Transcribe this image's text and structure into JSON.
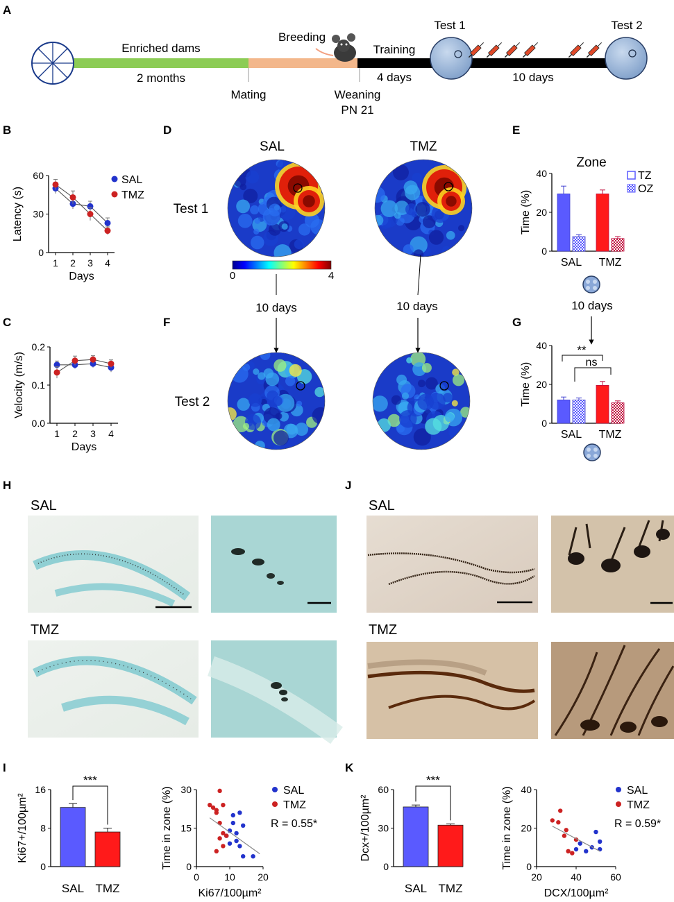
{
  "panels": {
    "A": "A",
    "B": "B",
    "C": "C",
    "D": "D",
    "E": "E",
    "F": "F",
    "G": "G",
    "H": "H",
    "I": "I",
    "J": "J",
    "K": "K"
  },
  "timeline": {
    "enriched": "Enriched dams",
    "months": "2 months",
    "mating": "Mating",
    "breeding": "Breeding",
    "training": "Training",
    "train_days": "4 days",
    "weaning": "Weaning",
    "pn": "PN 21",
    "test1": "Test 1",
    "interval": "10 days",
    "test2": "Test 2",
    "colors": {
      "enriched": "#8ccc55",
      "breeding": "#f3b78b",
      "black": "#000000",
      "pool": "#9ab8dc"
    }
  },
  "groups": {
    "sal": "SAL",
    "tmz": "TMZ"
  },
  "colors": {
    "sal": "#5a5aff",
    "tmz": "#ff1a1a",
    "tmz_dark": "#c01040",
    "sal_dot": "#2233cc",
    "tmz_dot": "#cc2222"
  },
  "heatmap": {
    "rows": [
      "Test 1",
      "Test 2"
    ],
    "arrow_label": "10 days",
    "scale_min": "0",
    "scale_max": "4"
  },
  "histology": {
    "sal": "SAL",
    "tmz": "TMZ"
  },
  "chart_data": [
    {
      "id": "B",
      "type": "line",
      "x": [
        1,
        2,
        3,
        4
      ],
      "xlabel": "Days",
      "ylabel": "Latency (s)",
      "ylim": [
        0,
        60
      ],
      "yticks": [
        "0",
        "30",
        "60"
      ],
      "xticks": [
        "1",
        "2",
        "3",
        "4"
      ],
      "series": [
        {
          "name": "SAL",
          "values": [
            50,
            38,
            36,
            23
          ],
          "err": [
            4,
            4,
            4,
            4
          ]
        },
        {
          "name": "TMZ",
          "values": [
            53,
            43,
            30,
            17
          ],
          "err": [
            4,
            5,
            5,
            3
          ]
        }
      ]
    },
    {
      "id": "C",
      "type": "line",
      "x": [
        1,
        2,
        3,
        4
      ],
      "xlabel": "Days",
      "ylabel": "Velocity (m/s)",
      "ylim": [
        0,
        0.2
      ],
      "yticks": [
        "0.0",
        "0.1",
        "0.2"
      ],
      "xticks": [
        "1",
        "2",
        "3",
        "4"
      ],
      "series": [
        {
          "name": "SAL",
          "values": [
            0.153,
            0.153,
            0.156,
            0.146
          ],
          "err": [
            0.01,
            0.01,
            0.01,
            0.012
          ]
        },
        {
          "name": "TMZ",
          "values": [
            0.133,
            0.164,
            0.167,
            0.156
          ],
          "err": [
            0.015,
            0.012,
            0.01,
            0.01
          ]
        }
      ]
    },
    {
      "id": "E",
      "type": "bar",
      "title": "Zone",
      "categories": [
        "SAL",
        "TMZ"
      ],
      "ylabel": "Time (%)",
      "ylim": [
        0,
        40
      ],
      "yticks": [
        "0",
        "20",
        "40"
      ],
      "legend": [
        "TZ",
        "OZ"
      ],
      "series": [
        {
          "name": "TZ",
          "values": [
            29.5,
            29.5
          ],
          "err": [
            4,
            2
          ]
        },
        {
          "name": "OZ",
          "values": [
            7.5,
            6.5
          ],
          "err": [
            1,
            1
          ]
        }
      ],
      "arrow_label": "10 days"
    },
    {
      "id": "G",
      "type": "bar",
      "categories": [
        "SAL",
        "TMZ"
      ],
      "ylabel": "Time (%)",
      "ylim": [
        0,
        40
      ],
      "yticks": [
        "0",
        "20",
        "40"
      ],
      "series": [
        {
          "name": "TZ",
          "values": [
            12,
            19.5
          ],
          "err": [
            1.5,
            2
          ]
        },
        {
          "name": "OZ",
          "values": [
            12,
            10.5
          ],
          "err": [
            1,
            1
          ]
        }
      ],
      "sig": [
        "**",
        "ns"
      ]
    },
    {
      "id": "I1",
      "type": "bar",
      "categories": [
        "SAL",
        "TMZ"
      ],
      "ylabel": "Ki67+/100µm²",
      "ylim": [
        0,
        16
      ],
      "yticks": [
        "0",
        "8",
        "16"
      ],
      "values": [
        12.3,
        7.2
      ],
      "err": [
        0.8,
        0.8
      ],
      "sig": "***"
    },
    {
      "id": "I2",
      "type": "scatter",
      "xlabel": "Ki67/100µm²",
      "ylabel": "Time in zone (%)",
      "xlim": [
        0,
        20
      ],
      "ylim": [
        0,
        30
      ],
      "xticks": [
        "0",
        "10",
        "20"
      ],
      "yticks": [
        "0",
        "15",
        "30"
      ],
      "legend": [
        "SAL",
        "TMZ"
      ],
      "annotation": "R = 0.55*",
      "series": [
        {
          "name": "SAL",
          "points": [
            [
              9,
              12
            ],
            [
              10,
              14
            ],
            [
              11,
              17
            ],
            [
              11,
              20
            ],
            [
              12,
              13
            ],
            [
              13,
              21
            ],
            [
              13,
              8
            ],
            [
              14,
              16
            ],
            [
              14,
              4
            ],
            [
              17,
              4
            ],
            [
              12,
              10
            ],
            [
              10,
              9
            ]
          ]
        },
        {
          "name": "TMZ",
          "points": [
            [
              4,
              24
            ],
            [
              5,
              23
            ],
            [
              6,
              22
            ],
            [
              6,
              21
            ],
            [
              7,
              17
            ],
            [
              7,
              11
            ],
            [
              8,
              13
            ],
            [
              8,
              8
            ],
            [
              6,
              6
            ],
            [
              9,
              12
            ],
            [
              8,
              24
            ],
            [
              7,
              29.5
            ]
          ]
        }
      ],
      "fit": [
        [
          4,
          19
        ],
        [
          19,
          5
        ]
      ]
    },
    {
      "id": "K1",
      "type": "bar",
      "categories": [
        "SAL",
        "TMZ"
      ],
      "ylabel": "Dcx+/100µm²",
      "ylim": [
        0,
        60
      ],
      "yticks": [
        "0",
        "30",
        "60"
      ],
      "values": [
        46.5,
        32.3
      ],
      "err": [
        1.5,
        1
      ],
      "sig": "***"
    },
    {
      "id": "K2",
      "type": "scatter",
      "xlabel": "DCX/100µm²",
      "ylabel": "Time in zone (%)",
      "xlim": [
        20,
        60
      ],
      "ylim": [
        0,
        40
      ],
      "xticks": [
        "20",
        "40",
        "60"
      ],
      "yticks": [
        "0",
        "20",
        "40"
      ],
      "legend": [
        "SAL",
        "TMZ"
      ],
      "annotation": "R = 0.59*",
      "series": [
        {
          "name": "SAL",
          "points": [
            [
              40,
              9
            ],
            [
              42,
              12
            ],
            [
              45,
              8
            ],
            [
              48,
              10
            ],
            [
              50,
              18
            ],
            [
              52,
              13
            ],
            [
              52,
              9
            ]
          ]
        },
        {
          "name": "TMZ",
          "points": [
            [
              28,
              24
            ],
            [
              31,
              23
            ],
            [
              32,
              29
            ],
            [
              34,
              16
            ],
            [
              35,
              19
            ],
            [
              36,
              8
            ],
            [
              38,
              7
            ],
            [
              40,
              14
            ]
          ]
        }
      ],
      "fit": [
        [
          28,
          21
        ],
        [
          52,
          8
        ]
      ]
    }
  ]
}
